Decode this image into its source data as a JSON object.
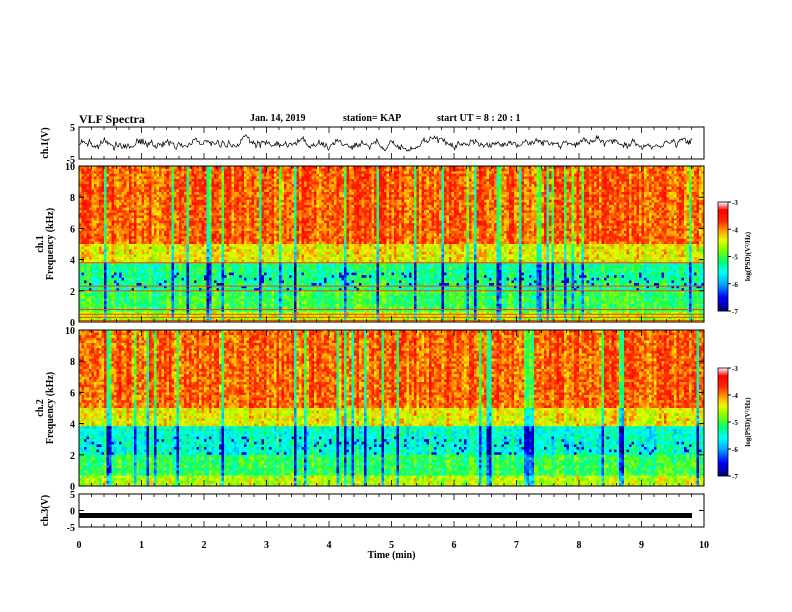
{
  "header": {
    "title": "VLF Spectra",
    "date": "Jan. 14, 2019",
    "station": "station= KAP",
    "start": "start  UT =   8 : 20 : 1"
  },
  "colors": {
    "spectrum": [
      "#00008b",
      "#0000ff",
      "#00bfff",
      "#00ffff",
      "#00ff7f",
      "#7fff00",
      "#ffff00",
      "#ff8c00",
      "#ff0000",
      "#ffffff"
    ]
  },
  "chart_data": [
    {
      "type": "line",
      "panel": "ch1_waveform",
      "ylabel": "ch.1(V)",
      "ylim": [
        -5,
        5
      ],
      "yticks": [
        "5",
        "-5"
      ],
      "xlim": [
        0,
        10
      ],
      "note_values": "noisy waveform roughly between -2 and 2 V across full time range",
      "series": [
        {
          "values_range": [
            -2,
            2
          ]
        }
      ]
    },
    {
      "type": "heatmap",
      "panel": "ch1_spectrogram",
      "ylabel": "ch.1\nFrequency (kHz)",
      "ylabel_line1": "ch.1",
      "ylabel_line2": "Frequency (kHz)",
      "ylim": [
        0,
        10
      ],
      "yticks": [
        "0",
        "2",
        "4",
        "6",
        "8",
        "10"
      ],
      "xlim": [
        0,
        10
      ],
      "colorbar": {
        "label": "log(PSD)(V²/Hz)",
        "ticks": [
          "-3",
          "-4",
          "-5",
          "-6",
          "-7"
        ],
        "range": [
          -7,
          -3
        ]
      },
      "lines_khz": [
        0.1,
        0.3,
        0.5,
        0.8,
        2.0,
        2.3,
        3.8
      ]
    },
    {
      "type": "heatmap",
      "panel": "ch2_spectrogram",
      "ylabel_line1": "ch.2",
      "ylabel_line2": "Frequency (kHz)",
      "ylim": [
        0,
        10
      ],
      "yticks": [
        "0",
        "2",
        "4",
        "6",
        "8",
        "10"
      ],
      "xlim": [
        0,
        10
      ],
      "colorbar": {
        "label": "log(PSD)(V²/Hz)",
        "ticks": [
          "-3",
          "-4",
          "-5",
          "-6",
          "-7"
        ],
        "range": [
          -7,
          -3
        ]
      }
    },
    {
      "type": "line",
      "panel": "ch3_waveform",
      "ylabel": "ch.3(V)",
      "ylim": [
        -5,
        5
      ],
      "yticks": [
        "5",
        "0",
        "-5"
      ],
      "xlim": [
        0,
        10
      ],
      "xlabel": "Time (min)",
      "xticks": [
        "0",
        "1",
        "2",
        "3",
        "4",
        "5",
        "6",
        "7",
        "8",
        "9",
        "10"
      ],
      "series": [
        {
          "constant_value": -1.5
        }
      ]
    }
  ]
}
